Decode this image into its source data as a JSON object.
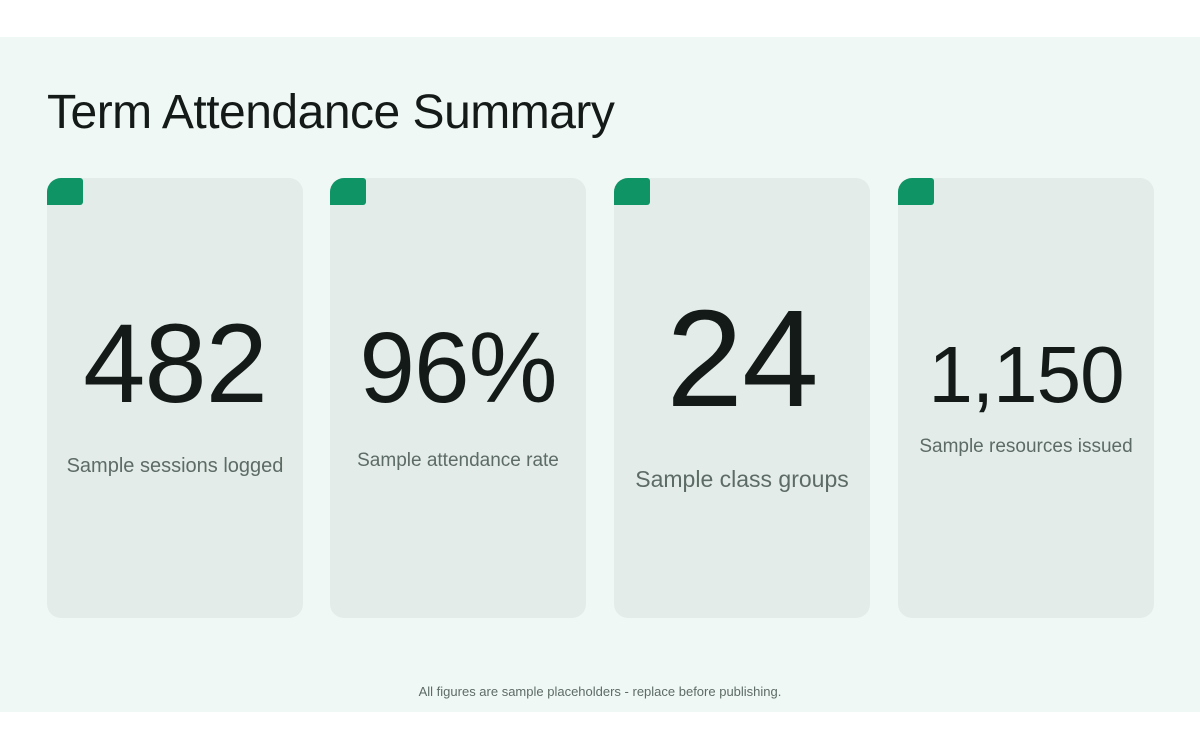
{
  "title": "Term Attendance Summary",
  "accent_color": "#0f9466",
  "cards": [
    {
      "value": "482",
      "label": "Sample sessions logged"
    },
    {
      "value": "96%",
      "label": "Sample attendance rate"
    },
    {
      "value": "24",
      "label": "Sample class groups"
    },
    {
      "value": "1,150",
      "label": "Sample resources issued"
    }
  ],
  "footer": "All figures are sample placeholders - replace before publishing."
}
